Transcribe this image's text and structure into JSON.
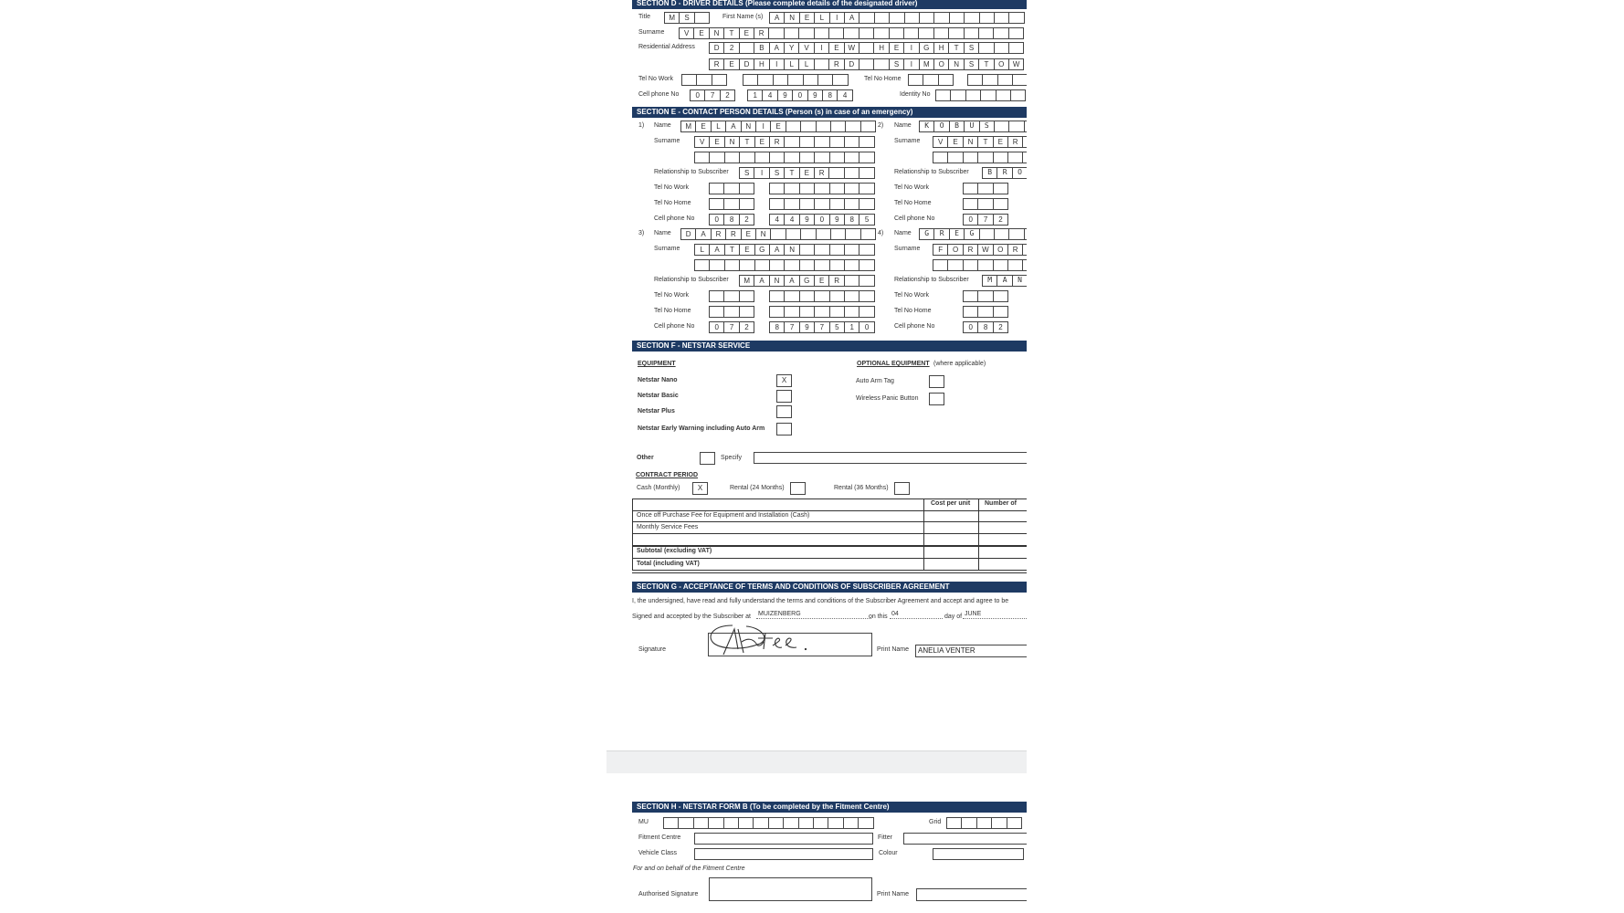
{
  "colors": {
    "section_header": "#1e3a63",
    "page_gap": "#eff0f1"
  },
  "section_d": {
    "header": "SECTION D - DRIVER DETAILS (Please complete details of the designated driver)",
    "title_label": "Title",
    "title": "MS",
    "first_name_label": "First Name (s)",
    "first_name": "ANELIA",
    "surname_label": "Surname",
    "surname": "VENTER",
    "address_label": "Residential Address",
    "address_line1": "D2 BAYVIEW HEIGHTS",
    "address_line2": "REDHILL RD  SIMONSTOW",
    "tel_work_label": "Tel No Work",
    "tel_home_label": "Tel No Home",
    "cell_label": "Cell phone No",
    "cell_code": "072",
    "cell_number": "1490984",
    "identity_label": "Identity No"
  },
  "section_e": {
    "header": "SECTION E - CONTACT PERSON DETAILS (Person (s) in case of an emergency)",
    "labels": {
      "name": "Name",
      "surname": "Surname",
      "relationship": "Relationship to Subscriber",
      "tel_work": "Tel No Work",
      "tel_home": "Tel No Home",
      "cell": "Cell phone No"
    },
    "contacts": [
      {
        "num": "1)",
        "name": "MELANIE",
        "surname": "VENTER",
        "relationship": "SISTER",
        "cell_code": "082",
        "cell_number": "4490985"
      },
      {
        "num": "2)",
        "name": "KOBUS",
        "surname": "VENTER",
        "relationship": "BRO",
        "cell_code": "072",
        "cell_number": ""
      },
      {
        "num": "3)",
        "name": "DARREN",
        "surname": "LATEGAN",
        "relationship": "MANAGER",
        "cell_code": "072",
        "cell_number": "8797510"
      },
      {
        "num": "4)",
        "name": "GREG",
        "surname": "FORWOR",
        "relationship": "MAN",
        "cell_code": "082",
        "cell_number": ""
      }
    ]
  },
  "section_f": {
    "header": "SECTION F - NETSTAR SERVICE",
    "equipment_title": "EQUIPMENT",
    "equipment": [
      {
        "label": "Netstar Nano",
        "mark": "X"
      },
      {
        "label": "Netstar Basic",
        "mark": ""
      },
      {
        "label": "Netstar Plus",
        "mark": ""
      },
      {
        "label": "Netstar Early Warning including Auto Arm",
        "mark": ""
      }
    ],
    "optional_title": "OPTIONAL EQUIPMENT",
    "optional_note": "(where applicable)",
    "optional": [
      {
        "label": "Auto Arm Tag",
        "mark": ""
      },
      {
        "label": "Wireless Panic Button",
        "mark": ""
      }
    ],
    "other_label": "Other",
    "other_mark": "",
    "specify_label": "Specify",
    "specify_value": "",
    "contract_title": "CONTRACT PERIOD",
    "contract": [
      {
        "label": "Cash (Monthly)",
        "mark": "X"
      },
      {
        "label": "Rental (24 Months)",
        "mark": ""
      },
      {
        "label": "Rental (36 Months)",
        "mark": ""
      }
    ],
    "table": {
      "headers": [
        "",
        "Cost per unit",
        "Number of"
      ],
      "rows": [
        {
          "label": "Once off Purchase Fee for Equipment and Installation (Cash)",
          "bold": false
        },
        {
          "label": "Monthly Service Fees",
          "bold": false
        },
        {
          "label": "",
          "bold": false
        },
        {
          "label": "Subtotal (excluding VAT)",
          "bold": true
        },
        {
          "label": "Total (including VAT)",
          "bold": true
        }
      ]
    }
  },
  "section_g": {
    "header": "SECTION G - ACCEPTANCE OF TERMS AND CONDITIONS OF SUBSCRIBER AGREEMENT",
    "statement": "I, the undersigned, have read and fully understand the terms and conditions of the Subscriber Agreement and accept and agree to be",
    "signed_at_label": "Signed and accepted by the Subscriber at",
    "signed_at": "MUIZENBERG",
    "on_this_label": "on this",
    "day": "04",
    "day_of_label": "day of",
    "month": "JUNE",
    "signature_label": "Signature",
    "print_name_label": "Print Name",
    "print_name": "ANELIA VENTER"
  },
  "section_h": {
    "header": "SECTION H - NETSTAR FORM B (To be completed by the Fitment Centre)",
    "mu_label": "MU",
    "grid_label": "Grid",
    "fitment_centre_label": "Fitment Centre",
    "fitter_label": "Fitter",
    "vehicle_class_label": "Vehicle Class",
    "colour_label": "Colour",
    "behalf_note": "For and on behalf of the Fitment Centre",
    "authorised_signature_label": "Authorised Signature",
    "print_name_label": "Print Name"
  }
}
